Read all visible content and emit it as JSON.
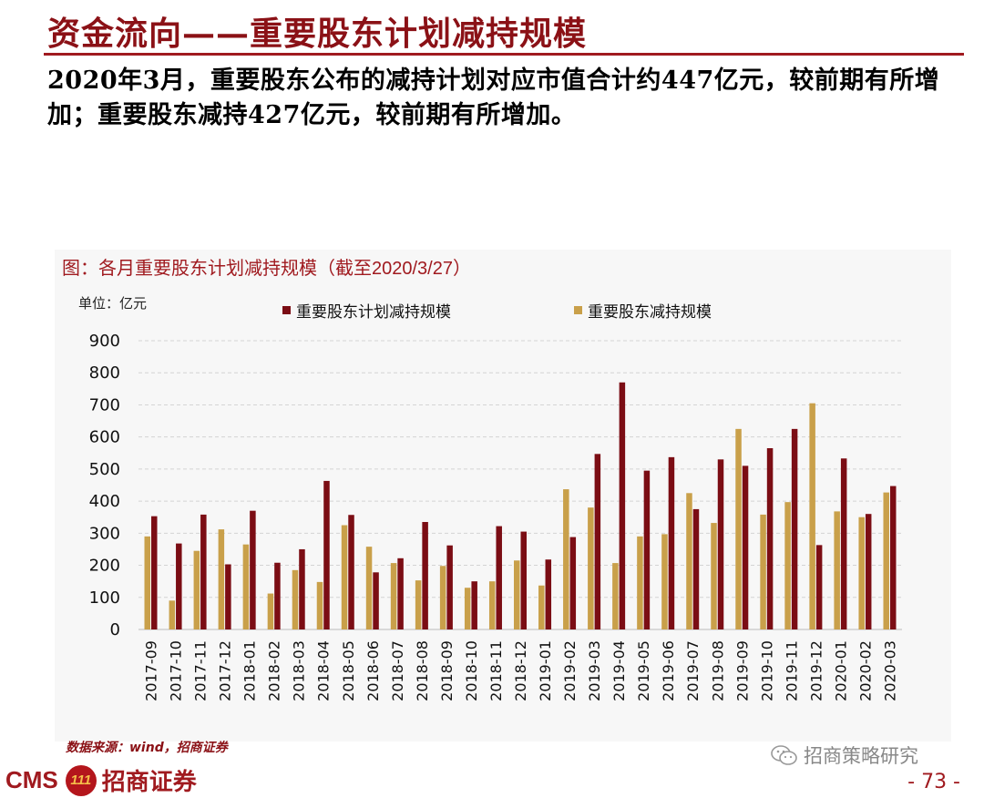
{
  "slide": {
    "title": "资金流向——重要股东计划减持规模",
    "summary": "2020年3月，重要股东公布的减持计划对应市值合计约447亿元，较前期有所增加；重要股东减持427亿元，较前期有所增加。",
    "source": "数据来源：wind，招商证券",
    "brand_text": "CMS",
    "brand_badge": "111",
    "brand_name": "招商证券",
    "watermark": "招商策略研究",
    "page_number": "- 73 -"
  },
  "chart_data": {
    "type": "bar",
    "title": "图：各月重要股东计划减持规模（截至2020/3/27）",
    "unit_label": "单位：亿元",
    "categories": [
      "2017-09",
      "2017-10",
      "2017-11",
      "2017-12",
      "2018-01",
      "2018-02",
      "2018-03",
      "2018-04",
      "2018-05",
      "2018-06",
      "2018-07",
      "2018-08",
      "2018-09",
      "2018-10",
      "2018-11",
      "2018-12",
      "2019-01",
      "2019-02",
      "2019-03",
      "2019-04",
      "2019-05",
      "2019-06",
      "2019-07",
      "2019-08",
      "2019-09",
      "2019-10",
      "2019-11",
      "2019-12",
      "2020-01",
      "2020-02",
      "2020-03"
    ],
    "series": [
      {
        "name": "重要股东计划减持规模",
        "color": "#7b0d14",
        "values": [
          353,
          268,
          358,
          203,
          370,
          208,
          250,
          463,
          357,
          178,
          222,
          335,
          262,
          150,
          322,
          305,
          218,
          288,
          547,
          770,
          495,
          537,
          375,
          530,
          510,
          565,
          625,
          263,
          533,
          360,
          447
        ]
      },
      {
        "name": "重要股东减持规模",
        "color": "#c9a04a",
        "values": [
          290,
          90,
          245,
          312,
          265,
          112,
          185,
          148,
          325,
          258,
          207,
          153,
          198,
          130,
          150,
          215,
          137,
          437,
          380,
          207,
          290,
          297,
          425,
          332,
          625,
          358,
          397,
          705,
          368,
          350,
          427
        ]
      }
    ],
    "ylim": [
      0,
      900
    ],
    "yticks": [
      0,
      100,
      200,
      300,
      400,
      500,
      600,
      700,
      800,
      900
    ],
    "grid": true,
    "legend_position": "top"
  }
}
